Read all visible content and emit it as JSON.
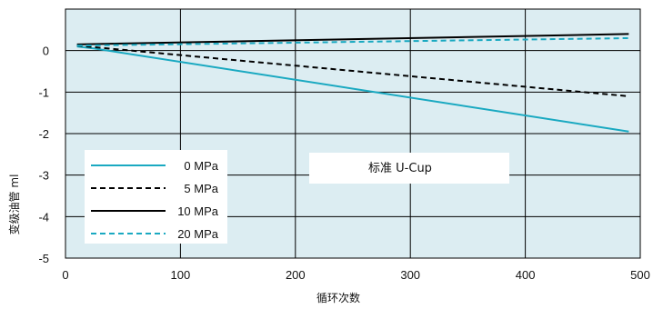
{
  "chart_data": {
    "type": "line",
    "xlabel": "循环次数",
    "ylabel": "变级油管 ml",
    "xlim": [
      0,
      500
    ],
    "ylim": [
      -5,
      1
    ],
    "x_ticks": [
      0,
      100,
      200,
      300,
      400,
      500
    ],
    "y_ticks": [
      0,
      -1,
      -2,
      -3,
      -4,
      -5
    ],
    "grid": true,
    "plot_background": "#dcedf2",
    "annotation": "标准 U-Cup",
    "legend_position": "bottom-left",
    "series": [
      {
        "name": "0 MPa",
        "color": "#1aa9c1",
        "dash": "solid",
        "x": [
          10,
          25,
          490
        ],
        "y": [
          0.1,
          0.05,
          -1.95
        ]
      },
      {
        "name": "5 MPa",
        "color": "#000000",
        "dash": "dashed",
        "x": [
          10,
          490
        ],
        "y": [
          0.12,
          -1.1
        ]
      },
      {
        "name": "10 MPa",
        "color": "#000000",
        "dash": "solid",
        "x": [
          10,
          490
        ],
        "y": [
          0.15,
          0.4
        ]
      },
      {
        "name": "20 MPa",
        "color": "#1aa9c1",
        "dash": "dashed",
        "x": [
          10,
          490
        ],
        "y": [
          0.12,
          0.3
        ]
      }
    ]
  }
}
